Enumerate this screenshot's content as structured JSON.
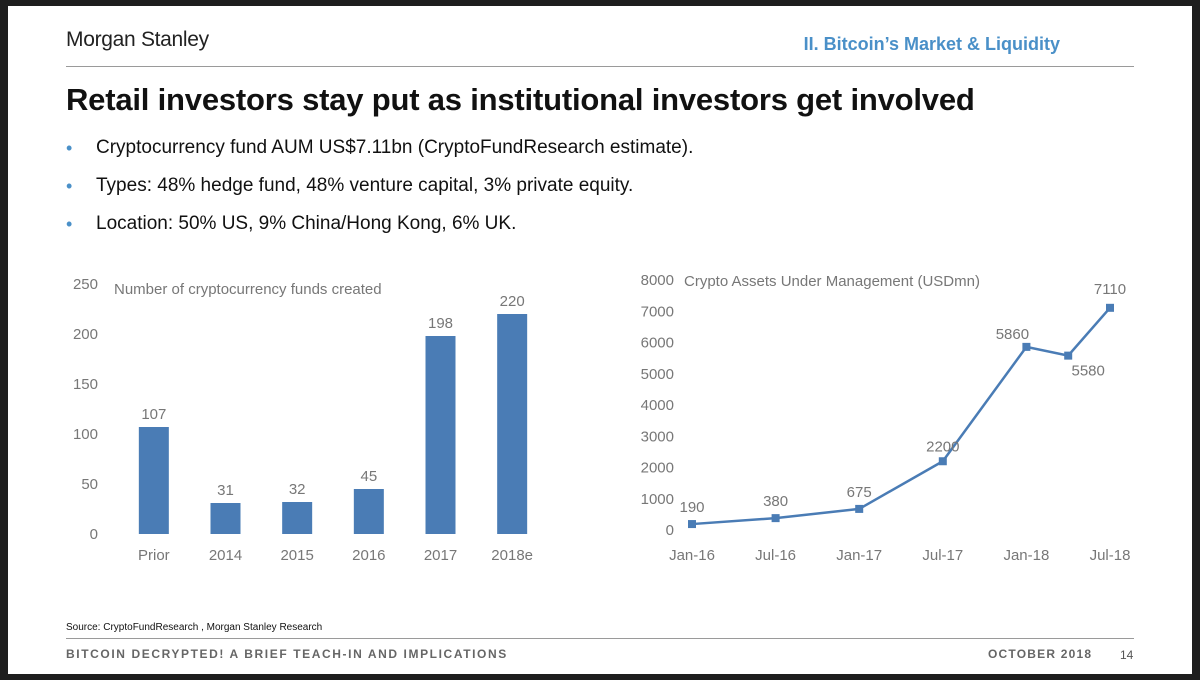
{
  "header": {
    "brand": "Morgan Stanley",
    "section": "II. Bitcoin’s Market & Liquidity"
  },
  "title": "Retail investors stay put as institutional investors get involved",
  "bullets": [
    "Cryptocurrency fund AUM US$7.11bn (CryptoFundResearch estimate).",
    "Types: 48% hedge fund, 48% venture capital, 3% private equity.",
    "Location: 50% US, 9% China/Hong Kong, 6% UK."
  ],
  "chart_data": [
    {
      "type": "bar",
      "title": "Number of cryptocurrency funds created",
      "categories": [
        "Prior",
        "2014",
        "2015",
        "2016",
        "2017",
        "2018e"
      ],
      "values": [
        107,
        31,
        32,
        45,
        198,
        220
      ],
      "ylim": [
        0,
        250
      ],
      "yticks": [
        0,
        50,
        100,
        150,
        200,
        250
      ],
      "xlabel": "",
      "ylabel": "",
      "grid": false,
      "color": "#4a7cb5"
    },
    {
      "type": "line",
      "title": "Crypto Assets Under Management (USDmn)",
      "x": [
        "Jan-16",
        "Jul-16",
        "Jan-17",
        "Jul-17",
        "Jan-18",
        "Apr-18",
        "Jul-18"
      ],
      "xticks": [
        "Jan-16",
        "Jul-16",
        "Jan-17",
        "Jul-17",
        "Jan-18",
        "Jul-18"
      ],
      "values": [
        190,
        380,
        675,
        2200,
        5860,
        5580,
        7110
      ],
      "ylim": [
        0,
        8000
      ],
      "yticks": [
        0,
        1000,
        2000,
        3000,
        4000,
        5000,
        6000,
        7000,
        8000
      ],
      "xlabel": "",
      "ylabel": "",
      "grid": false,
      "color": "#4a7cb5"
    }
  ],
  "source": "Source: CryptoFundResearch , Morgan Stanley Research",
  "footer": {
    "left": "BITCOIN DECRYPTED! A BRIEF TEACH-IN AND IMPLICATIONS",
    "date": "OCTOBER 2018",
    "page": "14"
  }
}
